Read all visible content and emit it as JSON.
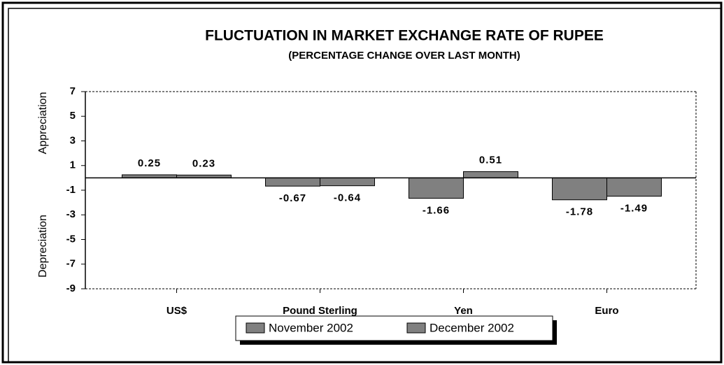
{
  "chart_data": {
    "type": "bar",
    "title": "FLUCTUATION IN MARKET EXCHANGE RATE OF RUPEE",
    "subtitle": "(PERCENTAGE CHANGE OVER LAST MONTH)",
    "y_label_top": "Appreciation",
    "y_label_bottom": "Depreciation",
    "categories": [
      "US$",
      "Pound Sterling",
      "Yen",
      "Euro"
    ],
    "series": [
      {
        "name": "November 2002",
        "color": "#808080",
        "values": [
          0.25,
          -0.67,
          -1.66,
          -1.78
        ]
      },
      {
        "name": "December 2002",
        "color": "#808080",
        "values": [
          0.23,
          -0.64,
          0.51,
          -1.49
        ]
      }
    ],
    "ylim": [
      -9,
      7
    ],
    "yticks": [
      -9,
      -7,
      -5,
      -3,
      -1,
      1,
      3,
      5,
      7
    ],
    "legend": "bottom"
  }
}
